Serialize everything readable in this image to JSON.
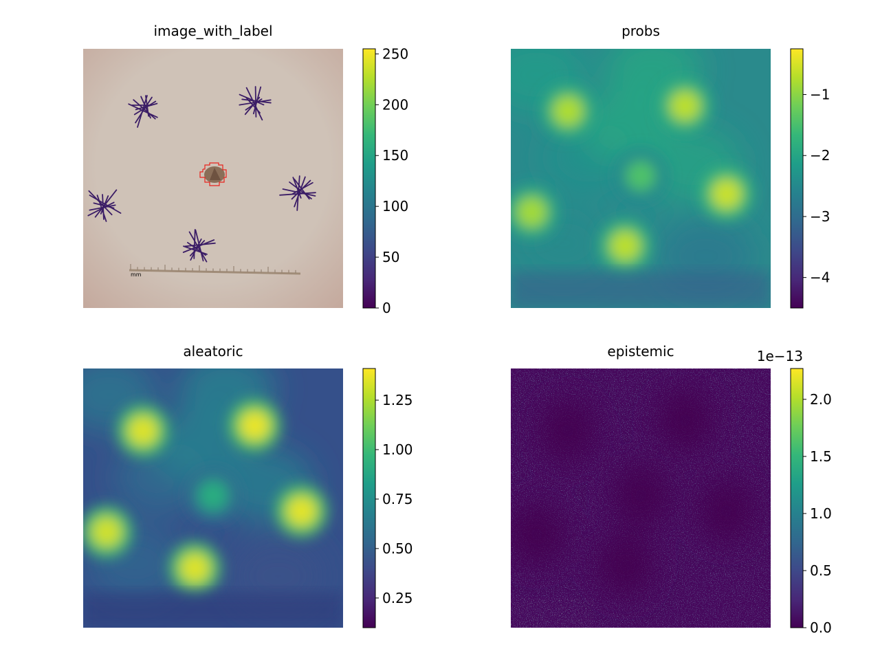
{
  "colors": {
    "viridis": [
      "#440154",
      "#482878",
      "#3e4989",
      "#31688e",
      "#26828e",
      "#1f9e89",
      "#35b779",
      "#6ece58",
      "#b5de2b",
      "#fde725"
    ],
    "label_outline": "#e8231c",
    "skin": "#cbbcb0",
    "ink": "#3b1d66",
    "ruler": "#a08c78"
  },
  "chart_data": [
    {
      "type": "heatmap",
      "title": "image_with_label",
      "content": "skin photo with ink marks, ruler and red-outlined lesion label",
      "ruler_label": "mm",
      "colorbar": {
        "ticks": [
          0,
          50,
          100,
          150,
          200,
          250
        ],
        "tick_labels": [
          "0",
          "50",
          "100",
          "150",
          "200",
          "250"
        ],
        "range": [
          0,
          255
        ],
        "offset_label": ""
      },
      "grid": false
    },
    {
      "type": "heatmap",
      "title": "probs",
      "colorbar": {
        "ticks": [
          -1,
          -2,
          -3,
          -4
        ],
        "tick_labels": [
          "−1",
          "−2",
          "−3",
          "−4"
        ],
        "range": [
          -4.5,
          -0.25
        ],
        "offset_label": ""
      },
      "hotspots": [
        {
          "x": 0.22,
          "y": 0.24,
          "level": 0.88
        },
        {
          "x": 0.67,
          "y": 0.22,
          "level": 0.9
        },
        {
          "x": 0.5,
          "y": 0.49,
          "level": 0.72
        },
        {
          "x": 0.83,
          "y": 0.56,
          "level": 0.92
        },
        {
          "x": 0.08,
          "y": 0.63,
          "level": 0.86
        },
        {
          "x": 0.44,
          "y": 0.76,
          "level": 0.9
        }
      ],
      "grid": false
    },
    {
      "type": "heatmap",
      "title": "aleatoric",
      "colorbar": {
        "ticks": [
          0.25,
          0.5,
          0.75,
          1.0,
          1.25
        ],
        "tick_labels": [
          "0.25",
          "0.50",
          "0.75",
          "1.00",
          "1.25"
        ],
        "range": [
          0.1,
          1.41
        ],
        "offset_label": ""
      },
      "hotspots": [
        {
          "x": 0.23,
          "y": 0.24,
          "level": 0.95
        },
        {
          "x": 0.66,
          "y": 0.22,
          "level": 0.97
        },
        {
          "x": 0.5,
          "y": 0.49,
          "level": 0.62
        },
        {
          "x": 0.84,
          "y": 0.55,
          "level": 0.96
        },
        {
          "x": 0.09,
          "y": 0.63,
          "level": 0.93
        },
        {
          "x": 0.43,
          "y": 0.77,
          "level": 0.95
        }
      ],
      "grid": false
    },
    {
      "type": "heatmap",
      "title": "epistemic",
      "colorbar": {
        "ticks": [
          0.0,
          0.5,
          1.0,
          1.5,
          2.0
        ],
        "tick_labels": [
          "0.0",
          "0.5",
          "1.0",
          "1.5",
          "2.0"
        ],
        "range": [
          0.0,
          2.27
        ],
        "offset_label": "1e−13"
      },
      "grid": false
    }
  ]
}
